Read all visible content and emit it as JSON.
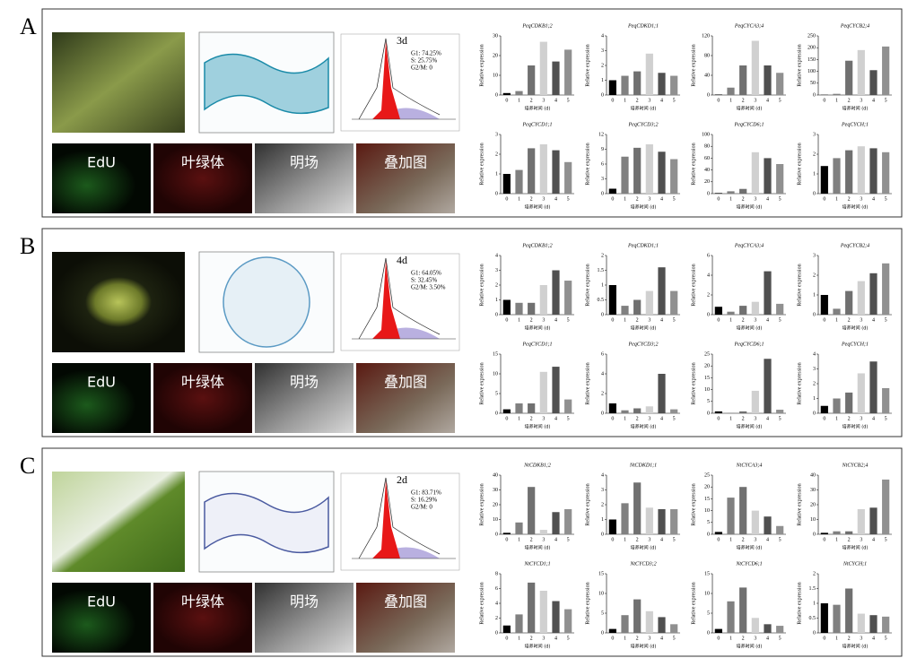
{
  "panels": [
    {
      "label": "A",
      "flow": {
        "day": "3d",
        "g1": "G1: 74.25%",
        "s": "S: 25.75%",
        "g2m": "G2/M: 0"
      },
      "image_labels": [
        "EdU",
        "叶绿体",
        "明场",
        "叠加图"
      ]
    },
    {
      "label": "B",
      "flow": {
        "day": "4d",
        "g1": "G1: 64.05%",
        "s": "S: 32.45%",
        "g2m": "G2/M: 3.50%"
      },
      "image_labels": [
        "EdU",
        "叶绿体",
        "明场",
        "叠加图"
      ]
    },
    {
      "label": "C",
      "flow": {
        "day": "2d",
        "g1": "G1: 83.71%",
        "s": "S: 16.29%",
        "g2m": "G2/M: 0"
      },
      "image_labels": [
        "EdU",
        "叶绿体",
        "明场",
        "叠加图"
      ]
    }
  ],
  "chart_data": [
    {
      "type": "bar",
      "title": "PeqCDKB1;2",
      "categories": [
        "0",
        "1",
        "2",
        "3",
        "4",
        "5"
      ],
      "values": [
        1,
        2,
        15,
        27,
        17,
        23
      ],
      "ylim": [
        0,
        30
      ],
      "yticks": [
        0,
        10,
        20,
        30
      ],
      "colors": [
        "#000000",
        "#808080",
        "#707070",
        "#d0d0d0",
        "#505050",
        "#909090"
      ],
      "x_label": "培养时间 (d)",
      "y_label": "Relative expression"
    },
    {
      "type": "bar",
      "title": "PeqCDKD1;1",
      "categories": [
        "0",
        "1",
        "2",
        "3",
        "4",
        "5"
      ],
      "values": [
        1,
        1.3,
        1.6,
        2.8,
        1.5,
        1.3
      ],
      "ylim": [
        0,
        4
      ],
      "yticks": [
        0,
        1,
        2,
        3,
        4
      ],
      "colors": [
        "#000000",
        "#808080",
        "#707070",
        "#d0d0d0",
        "#505050",
        "#909090"
      ],
      "x_label": "培养时间 (d)",
      "y_label": "Relative expression"
    },
    {
      "type": "bar",
      "title": "PeqCYCA3;4",
      "categories": [
        "0",
        "1",
        "2",
        "3",
        "4",
        "5"
      ],
      "values": [
        1,
        15,
        60,
        110,
        60,
        45
      ],
      "ylim": [
        0,
        120
      ],
      "yticks": [
        0,
        40,
        80,
        120
      ],
      "colors": [
        "#000000",
        "#808080",
        "#707070",
        "#d0d0d0",
        "#505050",
        "#909090"
      ],
      "x_label": "培养时间 (d)",
      "y_label": "Relative expression"
    },
    {
      "type": "bar",
      "title": "PeqCYCB2;4",
      "categories": [
        "0",
        "1",
        "2",
        "3",
        "4",
        "5"
      ],
      "values": [
        1,
        5,
        145,
        190,
        105,
        205
      ],
      "ylim": [
        0,
        250
      ],
      "yticks": [
        0,
        50,
        100,
        150,
        200,
        250
      ],
      "colors": [
        "#000000",
        "#808080",
        "#707070",
        "#d0d0d0",
        "#505050",
        "#909090"
      ],
      "x_label": "培养时间 (d)",
      "y_label": "Relative expression"
    },
    {
      "type": "bar",
      "title": "PeqCYCD1;1",
      "categories": [
        "0",
        "1",
        "2",
        "3",
        "4",
        "5"
      ],
      "values": [
        1,
        1.2,
        2.3,
        2.5,
        2.2,
        1.6
      ],
      "ylim": [
        0,
        3
      ],
      "yticks": [
        0,
        1,
        2,
        3
      ],
      "colors": [
        "#000000",
        "#808080",
        "#707070",
        "#d0d0d0",
        "#505050",
        "#909090"
      ],
      "x_label": "培养时间 (d)",
      "y_label": "Relative expression"
    },
    {
      "type": "bar",
      "title": "PeqCYCD3;2",
      "categories": [
        "0",
        "1",
        "2",
        "3",
        "4",
        "5"
      ],
      "values": [
        1,
        7.5,
        9.3,
        10,
        8.5,
        7
      ],
      "ylim": [
        0,
        12
      ],
      "yticks": [
        0,
        3,
        6,
        9,
        12
      ],
      "colors": [
        "#000000",
        "#808080",
        "#707070",
        "#d0d0d0",
        "#505050",
        "#909090"
      ],
      "x_label": "培养时间 (d)",
      "y_label": "Relative expression"
    },
    {
      "type": "bar",
      "title": "PeqCYCD6;1",
      "categories": [
        "0",
        "1",
        "2",
        "3",
        "4",
        "5"
      ],
      "values": [
        1,
        4,
        8,
        70,
        60,
        50
      ],
      "ylim": [
        0,
        100
      ],
      "yticks": [
        0,
        20,
        40,
        60,
        80,
        100
      ],
      "colors": [
        "#000000",
        "#808080",
        "#707070",
        "#d0d0d0",
        "#505050",
        "#909090"
      ],
      "x_label": "培养时间 (d)",
      "y_label": "Relative expression"
    },
    {
      "type": "bar",
      "title": "PeqCYCH;1",
      "categories": [
        "0",
        "1",
        "2",
        "3",
        "4",
        "5"
      ],
      "values": [
        1.4,
        1.8,
        2.2,
        2.4,
        2.3,
        2.1
      ],
      "ylim": [
        0,
        3
      ],
      "yticks": [
        0,
        1,
        2,
        3
      ],
      "colors": [
        "#000000",
        "#808080",
        "#707070",
        "#d0d0d0",
        "#505050",
        "#909090"
      ],
      "x_label": "培养时间 (d)",
      "y_label": "Relative expression"
    },
    {
      "type": "bar",
      "title": "PeqCDKB1;2",
      "categories": [
        "0",
        "1",
        "2",
        "3",
        "4",
        "5"
      ],
      "values": [
        1,
        0.8,
        0.8,
        2,
        3,
        2.3
      ],
      "ylim": [
        0,
        4
      ],
      "yticks": [
        0,
        1,
        2,
        3,
        4
      ],
      "colors": [
        "#000000",
        "#808080",
        "#707070",
        "#d0d0d0",
        "#505050",
        "#909090"
      ],
      "x_label": "培养时间 (d)",
      "y_label": "Relative expression"
    },
    {
      "type": "bar",
      "title": "PeqCDKD1;1",
      "categories": [
        "0",
        "1",
        "2",
        "3",
        "4",
        "5"
      ],
      "values": [
        1,
        0.3,
        0.5,
        0.8,
        1.6,
        0.8
      ],
      "ylim": [
        0,
        2
      ],
      "yticks": [
        0,
        0.5,
        1,
        1.5,
        2
      ],
      "colors": [
        "#000000",
        "#808080",
        "#707070",
        "#d0d0d0",
        "#505050",
        "#909090"
      ],
      "x_label": "培养时间 (d)",
      "y_label": "Relative expression"
    },
    {
      "type": "bar",
      "title": "PeqCYCA3;4",
      "categories": [
        "0",
        "1",
        "2",
        "3",
        "4",
        "5"
      ],
      "values": [
        0.8,
        0.3,
        0.9,
        1.3,
        4.4,
        1.1
      ],
      "ylim": [
        0,
        6
      ],
      "yticks": [
        0,
        2,
        4,
        6
      ],
      "colors": [
        "#000000",
        "#808080",
        "#707070",
        "#d0d0d0",
        "#505050",
        "#909090"
      ],
      "x_label": "培养时间 (d)",
      "y_label": "Relative expression"
    },
    {
      "type": "bar",
      "title": "PeqCYCB2;4",
      "categories": [
        "0",
        "1",
        "2",
        "3",
        "4",
        "5"
      ],
      "values": [
        1,
        0.3,
        1.2,
        1.7,
        2.1,
        2.6
      ],
      "ylim": [
        0,
        3
      ],
      "yticks": [
        0,
        1,
        2,
        3
      ],
      "colors": [
        "#000000",
        "#808080",
        "#707070",
        "#d0d0d0",
        "#505050",
        "#909090"
      ],
      "x_label": "培养时间 (d)",
      "y_label": "Relative expression"
    },
    {
      "type": "bar",
      "title": "PeqCYCD1;1",
      "categories": [
        "0",
        "1",
        "2",
        "3",
        "4",
        "5"
      ],
      "values": [
        1,
        2.5,
        2.5,
        10.5,
        11.8,
        3.5
      ],
      "ylim": [
        0,
        15
      ],
      "yticks": [
        0,
        5,
        10,
        15
      ],
      "colors": [
        "#000000",
        "#808080",
        "#707070",
        "#d0d0d0",
        "#505050",
        "#909090"
      ],
      "x_label": "培养时间 (d)",
      "y_label": "Relative expression"
    },
    {
      "type": "bar",
      "title": "PeqCYCD3;2",
      "categories": [
        "0",
        "1",
        "2",
        "3",
        "4",
        "5"
      ],
      "values": [
        1,
        0.3,
        0.5,
        0.7,
        4,
        0.4
      ],
      "ylim": [
        0,
        6
      ],
      "yticks": [
        0,
        2,
        4,
        6
      ],
      "colors": [
        "#000000",
        "#808080",
        "#707070",
        "#d0d0d0",
        "#505050",
        "#909090"
      ],
      "x_label": "培养时间 (d)",
      "y_label": "Relative expression"
    },
    {
      "type": "bar",
      "title": "PeqCYCD6;1",
      "categories": [
        "0",
        "1",
        "2",
        "3",
        "4",
        "5"
      ],
      "values": [
        0.8,
        0.2,
        0.8,
        9.5,
        23,
        1.5
      ],
      "ylim": [
        0,
        25
      ],
      "yticks": [
        0,
        5,
        10,
        15,
        20,
        25
      ],
      "colors": [
        "#000000",
        "#808080",
        "#707070",
        "#d0d0d0",
        "#505050",
        "#909090"
      ],
      "x_label": "培养时间 (d)",
      "y_label": "Relative expression"
    },
    {
      "type": "bar",
      "title": "PeqCYCH;1",
      "categories": [
        "0",
        "1",
        "2",
        "3",
        "4",
        "5"
      ],
      "values": [
        0.5,
        1,
        1.4,
        2.7,
        3.5,
        1.7
      ],
      "ylim": [
        0,
        4
      ],
      "yticks": [
        0,
        1,
        2,
        3,
        4
      ],
      "colors": [
        "#000000",
        "#808080",
        "#707070",
        "#d0d0d0",
        "#505050",
        "#909090"
      ],
      "x_label": "培养时间 (d)",
      "y_label": "Relative expression"
    },
    {
      "type": "bar",
      "title": "NtCDKB1;2",
      "categories": [
        "0",
        "1",
        "2",
        "3",
        "4",
        "5"
      ],
      "values": [
        1,
        8,
        32,
        3,
        15,
        17
      ],
      "ylim": [
        0,
        40
      ],
      "yticks": [
        0,
        10,
        20,
        30,
        40
      ],
      "colors": [
        "#000000",
        "#808080",
        "#707070",
        "#d0d0d0",
        "#505050",
        "#909090"
      ],
      "x_label": "培养时间 (d)",
      "y_label": "Relative expression"
    },
    {
      "type": "bar",
      "title": "NtCDKD1;1",
      "categories": [
        "0",
        "1",
        "2",
        "3",
        "4",
        "5"
      ],
      "values": [
        1,
        2.1,
        3.5,
        1.8,
        1.7,
        1.7
      ],
      "ylim": [
        0,
        4
      ],
      "yticks": [
        0,
        1,
        2,
        3,
        4
      ],
      "colors": [
        "#000000",
        "#808080",
        "#707070",
        "#d0d0d0",
        "#505050",
        "#909090"
      ],
      "x_label": "培养时间 (d)",
      "y_label": "Relative expression"
    },
    {
      "type": "bar",
      "title": "NtCYCA3;4",
      "categories": [
        "0",
        "1",
        "2",
        "3",
        "4",
        "5"
      ],
      "values": [
        1,
        15.5,
        20,
        10,
        7.5,
        3.5
      ],
      "ylim": [
        0,
        25
      ],
      "yticks": [
        0,
        5,
        10,
        15,
        20,
        25
      ],
      "colors": [
        "#000000",
        "#808080",
        "#707070",
        "#d0d0d0",
        "#505050",
        "#909090"
      ],
      "x_label": "培养时间 (d)",
      "y_label": "Relative expression"
    },
    {
      "type": "bar",
      "title": "NtCYCB2;4",
      "categories": [
        "0",
        "1",
        "2",
        "3",
        "4",
        "5"
      ],
      "values": [
        1,
        2,
        2,
        17,
        18,
        37
      ],
      "ylim": [
        0,
        40
      ],
      "yticks": [
        0,
        10,
        20,
        30,
        40
      ],
      "colors": [
        "#000000",
        "#808080",
        "#707070",
        "#d0d0d0",
        "#505050",
        "#909090"
      ],
      "x_label": "培养时间 (d)",
      "y_label": "Relative expression"
    },
    {
      "type": "bar",
      "title": "NtCYCD1;1",
      "categories": [
        "0",
        "1",
        "2",
        "3",
        "4",
        "5"
      ],
      "values": [
        1,
        2.5,
        6.8,
        5.7,
        4.3,
        3.2
      ],
      "ylim": [
        0,
        8
      ],
      "yticks": [
        0,
        2,
        4,
        6,
        8
      ],
      "colors": [
        "#000000",
        "#808080",
        "#707070",
        "#d0d0d0",
        "#505050",
        "#909090"
      ],
      "x_label": "培养时间 (d)",
      "y_label": "Relative expression"
    },
    {
      "type": "bar",
      "title": "NtCYCD3;2",
      "categories": [
        "0",
        "1",
        "2",
        "3",
        "4",
        "5"
      ],
      "values": [
        1,
        4.5,
        8.5,
        5.5,
        4,
        2.2
      ],
      "ylim": [
        0,
        15
      ],
      "yticks": [
        0,
        5,
        10,
        15
      ],
      "colors": [
        "#000000",
        "#808080",
        "#707070",
        "#d0d0d0",
        "#505050",
        "#909090"
      ],
      "x_label": "培养时间 (d)",
      "y_label": "Relative expression"
    },
    {
      "type": "bar",
      "title": "NtCYCD6;1",
      "categories": [
        "0",
        "1",
        "2",
        "3",
        "4",
        "5"
      ],
      "values": [
        1,
        8,
        11.5,
        3.8,
        2.2,
        1.8
      ],
      "ylim": [
        0,
        15
      ],
      "yticks": [
        0,
        5,
        10,
        15
      ],
      "colors": [
        "#000000",
        "#808080",
        "#707070",
        "#d0d0d0",
        "#505050",
        "#909090"
      ],
      "x_label": "培养时间 (d)",
      "y_label": "Relative expression"
    },
    {
      "type": "bar",
      "title": "NtCYCH;1",
      "categories": [
        "0",
        "1",
        "2",
        "3",
        "4",
        "5"
      ],
      "values": [
        1,
        0.95,
        1.5,
        0.65,
        0.6,
        0.55
      ],
      "ylim": [
        0,
        2
      ],
      "yticks": [
        0,
        0.5,
        1,
        1.5,
        2
      ],
      "colors": [
        "#000000",
        "#808080",
        "#707070",
        "#d0d0d0",
        "#505050",
        "#909090"
      ],
      "x_label": "培养时间 (d)",
      "y_label": "Relative expression"
    }
  ]
}
